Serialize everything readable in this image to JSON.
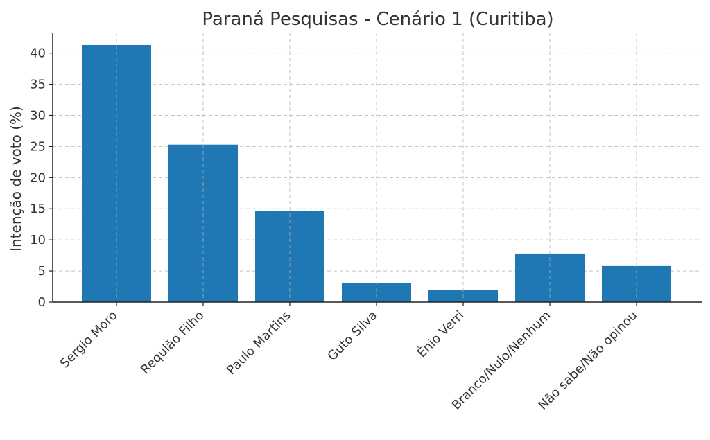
{
  "chart_data": {
    "type": "bar",
    "title": "Paraná Pesquisas - Cenário 1 (Curitiba)",
    "xlabel": "",
    "ylabel": "Intenção de voto (%)",
    "categories": [
      "Sergio Moro",
      "Requião Filho",
      "Paulo Martins",
      "Guto Silva",
      "Ênio Verri",
      "Branco/Nulo/Nenhum",
      "Não sabe/Não opinou"
    ],
    "values": [
      41.3,
      25.3,
      14.6,
      3.1,
      1.9,
      7.8,
      5.8
    ],
    "ylim": [
      0,
      43.3
    ],
    "yticks": [
      0,
      5,
      10,
      15,
      20,
      25,
      30,
      35,
      40
    ],
    "grid": true,
    "bar_color": "#1f77b4"
  }
}
